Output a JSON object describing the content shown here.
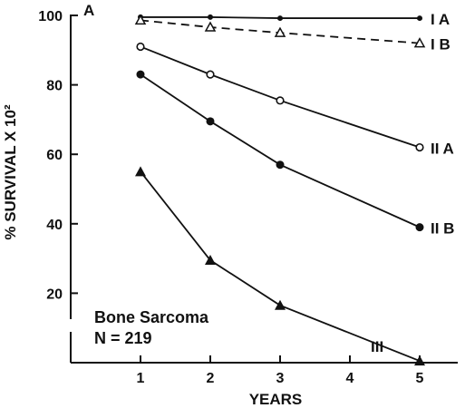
{
  "chart_data": {
    "type": "line",
    "panel_label": "A",
    "xlabel": "YEARS",
    "ylabel": "% SURVIVAL X 10²",
    "x_ticks": [
      1,
      2,
      3,
      4,
      5
    ],
    "y_ticks": [
      20,
      40,
      60,
      80,
      100
    ],
    "xlim": [
      0.15,
      5.35
    ],
    "ylim": [
      0,
      100
    ],
    "grid": false,
    "annotation": [
      "Bone Sarcoma",
      "N = 219"
    ],
    "series": [
      {
        "name": "I A",
        "marker": "dot-small",
        "dash": false,
        "x": [
          1,
          2,
          3,
          5
        ],
        "y": [
          99.5,
          99.5,
          99.2,
          99.2
        ]
      },
      {
        "name": "I B",
        "marker": "triangle-open",
        "dash": true,
        "x": [
          1,
          2,
          3,
          5
        ],
        "y": [
          98.6,
          96.6,
          95.0,
          92.0
        ]
      },
      {
        "name": "II A",
        "marker": "circle-open",
        "dash": false,
        "x": [
          1,
          2,
          3,
          5
        ],
        "y": [
          91.0,
          83.0,
          75.5,
          62.0
        ]
      },
      {
        "name": "II B",
        "marker": "circle-filled",
        "dash": false,
        "x": [
          1,
          2,
          3,
          5
        ],
        "y": [
          83.0,
          69.5,
          57.0,
          39.0
        ]
      },
      {
        "name": "III",
        "marker": "triangle-filled",
        "dash": false,
        "x": [
          1,
          2,
          3,
          5
        ],
        "y": [
          55.0,
          29.5,
          16.5,
          0.5
        ]
      }
    ]
  }
}
